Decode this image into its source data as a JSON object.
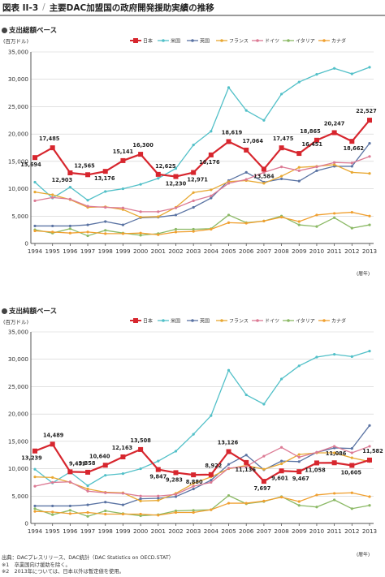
{
  "header": {
    "figure_number": "図表 II-3",
    "title": "主要DAC加盟国の政府開発援助実績の推移"
  },
  "chart_data": [
    {
      "type": "line",
      "subtitle": "支出総額ベース",
      "ylabel": "(百万ドル)",
      "xlabel": "(暦年)",
      "ylim": [
        0,
        35000
      ],
      "yticks": [
        0,
        5000,
        10000,
        15000,
        20000,
        25000,
        30000,
        35000
      ],
      "ytick_labels": [
        "0",
        "5,000",
        "10,000",
        "15,000",
        "20,000",
        "25,000",
        "30,000",
        "35,000"
      ],
      "grid": true,
      "legend_position": "top-right",
      "x": [
        "1994",
        "1995",
        "1996",
        "1997",
        "1998",
        "1999",
        "2000",
        "2001",
        "2002",
        "2003",
        "2004",
        "2005",
        "2006",
        "2007",
        "2008",
        "2009",
        "2010",
        "2011",
        "2012",
        "2013"
      ],
      "series": [
        {
          "name": "日本",
          "color": "#d7262e",
          "highlight": true,
          "values": [
            15694,
            17485,
            12903,
            12565,
            13176,
            15141,
            16300,
            12625,
            12230,
            12971,
            16176,
            18619,
            17064,
            13584,
            17475,
            16451,
            18865,
            20247,
            18662,
            22527
          ],
          "labels": [
            "15,694",
            "17,485",
            "12,903",
            "12,565",
            "13,176",
            "15,141",
            "16,300",
            "12,625",
            "12,230",
            "12,971",
            "16,176",
            "18,619",
            "17,064",
            "13,584",
            "17,475",
            "16,451",
            "18,865",
            "20,247",
            "18,662",
            "22,527"
          ]
        },
        {
          "name": "米国",
          "color": "#52c0c8",
          "values": [
            11200,
            8300,
            10300,
            7900,
            9500,
            10000,
            10800,
            11900,
            13700,
            18000,
            20500,
            28500,
            24300,
            22500,
            27300,
            29500,
            30900,
            32000,
            31000,
            32200
          ]
        },
        {
          "name": "英国",
          "color": "#5a73a3",
          "values": [
            3200,
            3200,
            3200,
            3400,
            4000,
            3400,
            4700,
            4800,
            5200,
            6600,
            8300,
            11500,
            13000,
            11200,
            11800,
            11400,
            13300,
            14100,
            14100,
            18300
          ]
        },
        {
          "name": "フランス",
          "color": "#e8a832",
          "values": [
            9400,
            8900,
            8000,
            6600,
            6700,
            6200,
            4800,
            4900,
            6600,
            9300,
            9800,
            11300,
            11500,
            11000,
            12300,
            13900,
            14100,
            14400,
            13000,
            12800
          ]
        },
        {
          "name": "ドイツ",
          "color": "#dc7a94",
          "values": [
            7800,
            8400,
            8100,
            6800,
            6600,
            6500,
            5800,
            5800,
            6500,
            7800,
            8700,
            11000,
            11700,
            13000,
            14000,
            13300,
            14000,
            14800,
            14700,
            15900
          ]
        },
        {
          "name": "イタリア",
          "color": "#8bb965",
          "values": [
            2500,
            1900,
            2700,
            1400,
            2400,
            1900,
            1500,
            1800,
            2600,
            2600,
            2700,
            5200,
            3800,
            4100,
            5000,
            3400,
            3100,
            4700,
            2800,
            3400
          ]
        },
        {
          "name": "カナダ",
          "color": "#f0a030",
          "values": [
            2300,
            2100,
            1900,
            2100,
            1800,
            1800,
            1900,
            1600,
            2100,
            2200,
            2600,
            3800,
            3700,
            4100,
            4800,
            4000,
            5200,
            5500,
            5700,
            5000
          ]
        }
      ]
    },
    {
      "type": "line",
      "subtitle": "支出純額ベース",
      "ylabel": "(百万ドル)",
      "xlabel": "(暦年)",
      "ylim": [
        0,
        35000
      ],
      "yticks": [
        0,
        5000,
        10000,
        15000,
        20000,
        25000,
        30000,
        35000
      ],
      "ytick_labels": [
        "0",
        "5,000",
        "10,000",
        "15,000",
        "20,000",
        "25,000",
        "30,000",
        "35,000"
      ],
      "grid": true,
      "legend_position": "top-right",
      "x": [
        "1994",
        "1995",
        "1996",
        "1997",
        "1998",
        "1999",
        "2000",
        "2001",
        "2002",
        "2003",
        "2004",
        "2005",
        "2006",
        "2007",
        "2008",
        "2009",
        "2010",
        "2011",
        "2012",
        "2013"
      ],
      "series": [
        {
          "name": "日本",
          "color": "#d7262e",
          "highlight": true,
          "values": [
            13239,
            14489,
            9439,
            9358,
            10640,
            12163,
            13508,
            9847,
            9283,
            8880,
            8922,
            13126,
            11136,
            7697,
            9601,
            9467,
            11058,
            11086,
            10605,
            11582
          ],
          "labels": [
            "13,239",
            "14,489",
            "9,439",
            "9,358",
            "10,640",
            "12,163",
            "13,508",
            "9,847",
            "9,283",
            "8,880",
            "8,922",
            "13,126",
            "11,136",
            "7,697",
            "9,601",
            "9,467",
            "11,058",
            "11,086",
            "10,605",
            "11,582"
          ]
        },
        {
          "name": "米国",
          "color": "#52c0c8",
          "values": [
            9900,
            7400,
            9400,
            6900,
            8800,
            9100,
            10000,
            11400,
            13200,
            16300,
            19700,
            28000,
            23500,
            21800,
            26400,
            28800,
            30400,
            30900,
            30500,
            31500
          ]
        },
        {
          "name": "英国",
          "color": "#5a73a3",
          "values": [
            3200,
            3200,
            3200,
            3400,
            3900,
            3400,
            4500,
            4600,
            4900,
            6300,
            7900,
            10800,
            12500,
            9800,
            11400,
            11300,
            13000,
            13800,
            13700,
            17900
          ]
        },
        {
          "name": "フランス",
          "color": "#e8a832",
          "values": [
            8500,
            8400,
            7500,
            6300,
            5700,
            5600,
            4100,
            4200,
            5500,
            7300,
            8500,
            10000,
            10600,
            9900,
            10900,
            12600,
            12900,
            12900,
            12000,
            11300
          ]
        },
        {
          "name": "ドイツ",
          "color": "#dc7a94",
          "values": [
            6800,
            7500,
            7600,
            5900,
            5600,
            5500,
            5000,
            5000,
            5300,
            6800,
            7500,
            10100,
            10400,
            12300,
            13900,
            12100,
            13000,
            14100,
            12900,
            14100
          ]
        },
        {
          "name": "イタリア",
          "color": "#8bb965",
          "values": [
            2700,
            1600,
            2400,
            1300,
            2300,
            1800,
            1400,
            1600,
            2300,
            2400,
            2500,
            5100,
            3600,
            4000,
            4900,
            3300,
            3000,
            4300,
            2700,
            3300
          ]
        },
        {
          "name": "カナダ",
          "color": "#f0a030",
          "values": [
            2200,
            2100,
            1800,
            2000,
            1700,
            1700,
            1700,
            1500,
            2000,
            2000,
            2500,
            3700,
            3700,
            4100,
            4800,
            4000,
            5200,
            5500,
            5600,
            4900
          ]
        }
      ]
    }
  ],
  "notes": [
    "出典：DACプレスリリース、DAC統計（DAC Statistics on OECD.STAT）",
    "※1　卒業国向け援助を除く。",
    "※2　2013年については、日本以外は暫定値を使用。"
  ]
}
